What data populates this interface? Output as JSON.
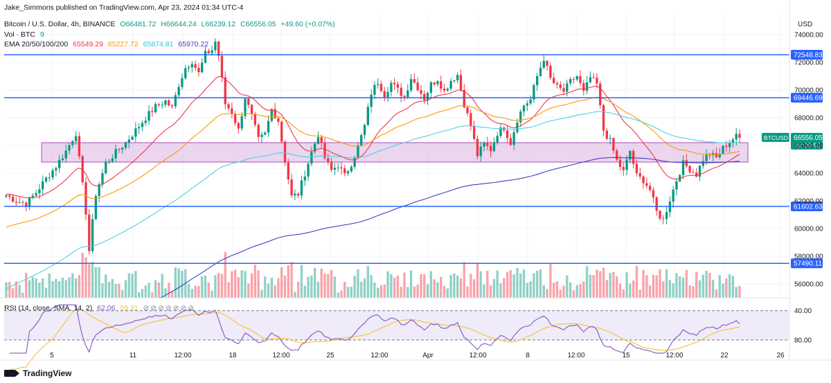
{
  "header": {
    "publisher": "Jake_Simmons published on TradingView.com, Apr 23, 2024 01:34 UTC-4",
    "symbol": "Bitcoin / U.S. Dollar, 4h, BINANCE",
    "open": "O66481.72",
    "high": "H66644.24",
    "low": "L66239.12",
    "close": "C66556.05",
    "change": "+49.60 (+0.07%)",
    "vol_label": "Vol · BTC",
    "vol_value": "9",
    "ema_label": "EMA 20/50/100/200",
    "ema20": "65549.29",
    "ema50": "65227.72",
    "ema100": "65874.81",
    "ema200": "65970.22",
    "rsi_label": "RSI (14, close, SMA, 14, 2)",
    "rsi_value": "62.06",
    "rsi_sma": "59.31"
  },
  "logo_text": "TradingView",
  "currency": "USD",
  "colors": {
    "up": "#089981",
    "down": "#f23645",
    "ema20": "#f23645",
    "ema50": "#ff9800",
    "ema100": "#4dd0e1",
    "ema200": "#3f3fbf",
    "hline": "#2962ff",
    "zone": "#e1bee7",
    "rsi": "#7e57c2",
    "rsi_sma": "#fbc02d"
  },
  "chart_data": {
    "type": "candlestick",
    "timeframe": "4h",
    "x_ticks": [
      "5",
      "11",
      "12:00",
      "18",
      "12:00",
      "25",
      "12:00",
      "Apr",
      "12:00",
      "8",
      "12:00",
      "15",
      "12:00",
      "22",
      "26"
    ],
    "y_ticks": [
      "74000.00",
      "72000.00",
      "70000.00",
      "68000.00",
      "66000.00",
      "64000.00",
      "62000.00",
      "60000.00",
      "58000.00",
      "56000.00"
    ],
    "ylim": [
      55000,
      75500
    ],
    "horizontal_levels": [
      {
        "value": 72548.83,
        "label": "72548.83"
      },
      {
        "value": 69446.69,
        "label": "69446.69"
      },
      {
        "value": 61602.63,
        "label": "61602.63"
      },
      {
        "value": 57490.11,
        "label": "57490.11"
      }
    ],
    "zone": {
      "low": 64800,
      "high": 66200
    },
    "last_price": {
      "label": "BTCUSD",
      "value": "66556.05",
      "countdown": "02:25:53"
    },
    "close_path": [
      [
        0,
        62400
      ],
      [
        3,
        62000
      ],
      [
        6,
        61800
      ],
      [
        9,
        62600
      ],
      [
        12,
        63600
      ],
      [
        15,
        64500
      ],
      [
        18,
        65600
      ],
      [
        21,
        66900
      ],
      [
        24,
        61200
      ],
      [
        25,
        58400
      ],
      [
        27,
        62500
      ],
      [
        30,
        64700
      ],
      [
        33,
        65500
      ],
      [
        36,
        66200
      ],
      [
        39,
        67100
      ],
      [
        42,
        68000
      ],
      [
        45,
        68800
      ],
      [
        48,
        69200
      ],
      [
        50,
        68700
      ],
      [
        52,
        70400
      ],
      [
        54,
        71600
      ],
      [
        56,
        72100
      ],
      [
        58,
        71200
      ],
      [
        60,
        72600
      ],
      [
        62,
        72900
      ],
      [
        63,
        73500
      ],
      [
        64,
        72500
      ],
      [
        66,
        69000
      ],
      [
        68,
        68400
      ],
      [
        70,
        67100
      ],
      [
        72,
        69500
      ],
      [
        74,
        68100
      ],
      [
        76,
        66400
      ],
      [
        78,
        66800
      ],
      [
        80,
        68600
      ],
      [
        82,
        67800
      ],
      [
        84,
        64900
      ],
      [
        86,
        62300
      ],
      [
        88,
        62500
      ],
      [
        90,
        64000
      ],
      [
        92,
        65500
      ],
      [
        94,
        66800
      ],
      [
        96,
        65100
      ],
      [
        98,
        64200
      ],
      [
        100,
        64600
      ],
      [
        102,
        63800
      ],
      [
        104,
        64700
      ],
      [
        106,
        65900
      ],
      [
        108,
        67400
      ],
      [
        110,
        69800
      ],
      [
        112,
        70600
      ],
      [
        114,
        69700
      ],
      [
        116,
        70500
      ],
      [
        118,
        70000
      ],
      [
        120,
        69500
      ],
      [
        122,
        70900
      ],
      [
        124,
        70200
      ],
      [
        126,
        69400
      ],
      [
        128,
        70400
      ],
      [
        130,
        70800
      ],
      [
        132,
        69900
      ],
      [
        134,
        70700
      ],
      [
        136,
        71100
      ],
      [
        138,
        69000
      ],
      [
        140,
        67400
      ],
      [
        142,
        65300
      ],
      [
        144,
        66100
      ],
      [
        146,
        65700
      ],
      [
        148,
        66900
      ],
      [
        150,
        67300
      ],
      [
        152,
        66200
      ],
      [
        154,
        67900
      ],
      [
        156,
        68900
      ],
      [
        158,
        69300
      ],
      [
        160,
        71000
      ],
      [
        162,
        72300
      ],
      [
        164,
        70800
      ],
      [
        166,
        70200
      ],
      [
        168,
        69900
      ],
      [
        170,
        70600
      ],
      [
        172,
        71000
      ],
      [
        174,
        69800
      ],
      [
        176,
        70900
      ],
      [
        178,
        70400
      ],
      [
        180,
        67100
      ],
      [
        182,
        66300
      ],
      [
        184,
        64900
      ],
      [
        186,
        64100
      ],
      [
        188,
        65600
      ],
      [
        190,
        63800
      ],
      [
        192,
        63500
      ],
      [
        194,
        62800
      ],
      [
        196,
        61200
      ],
      [
        198,
        60600
      ],
      [
        200,
        62100
      ],
      [
        202,
        63500
      ],
      [
        204,
        64700
      ],
      [
        206,
        64300
      ],
      [
        208,
        63900
      ],
      [
        210,
        65000
      ],
      [
        212,
        65400
      ],
      [
        214,
        65100
      ],
      [
        216,
        65800
      ],
      [
        218,
        66300
      ],
      [
        220,
        66644
      ],
      [
        221,
        66556
      ]
    ],
    "rsi": {
      "lines": [
        40,
        80
      ],
      "ticks": [
        "80.00",
        "40.00"
      ],
      "last": 62.06,
      "sma_last": 59.31
    }
  }
}
